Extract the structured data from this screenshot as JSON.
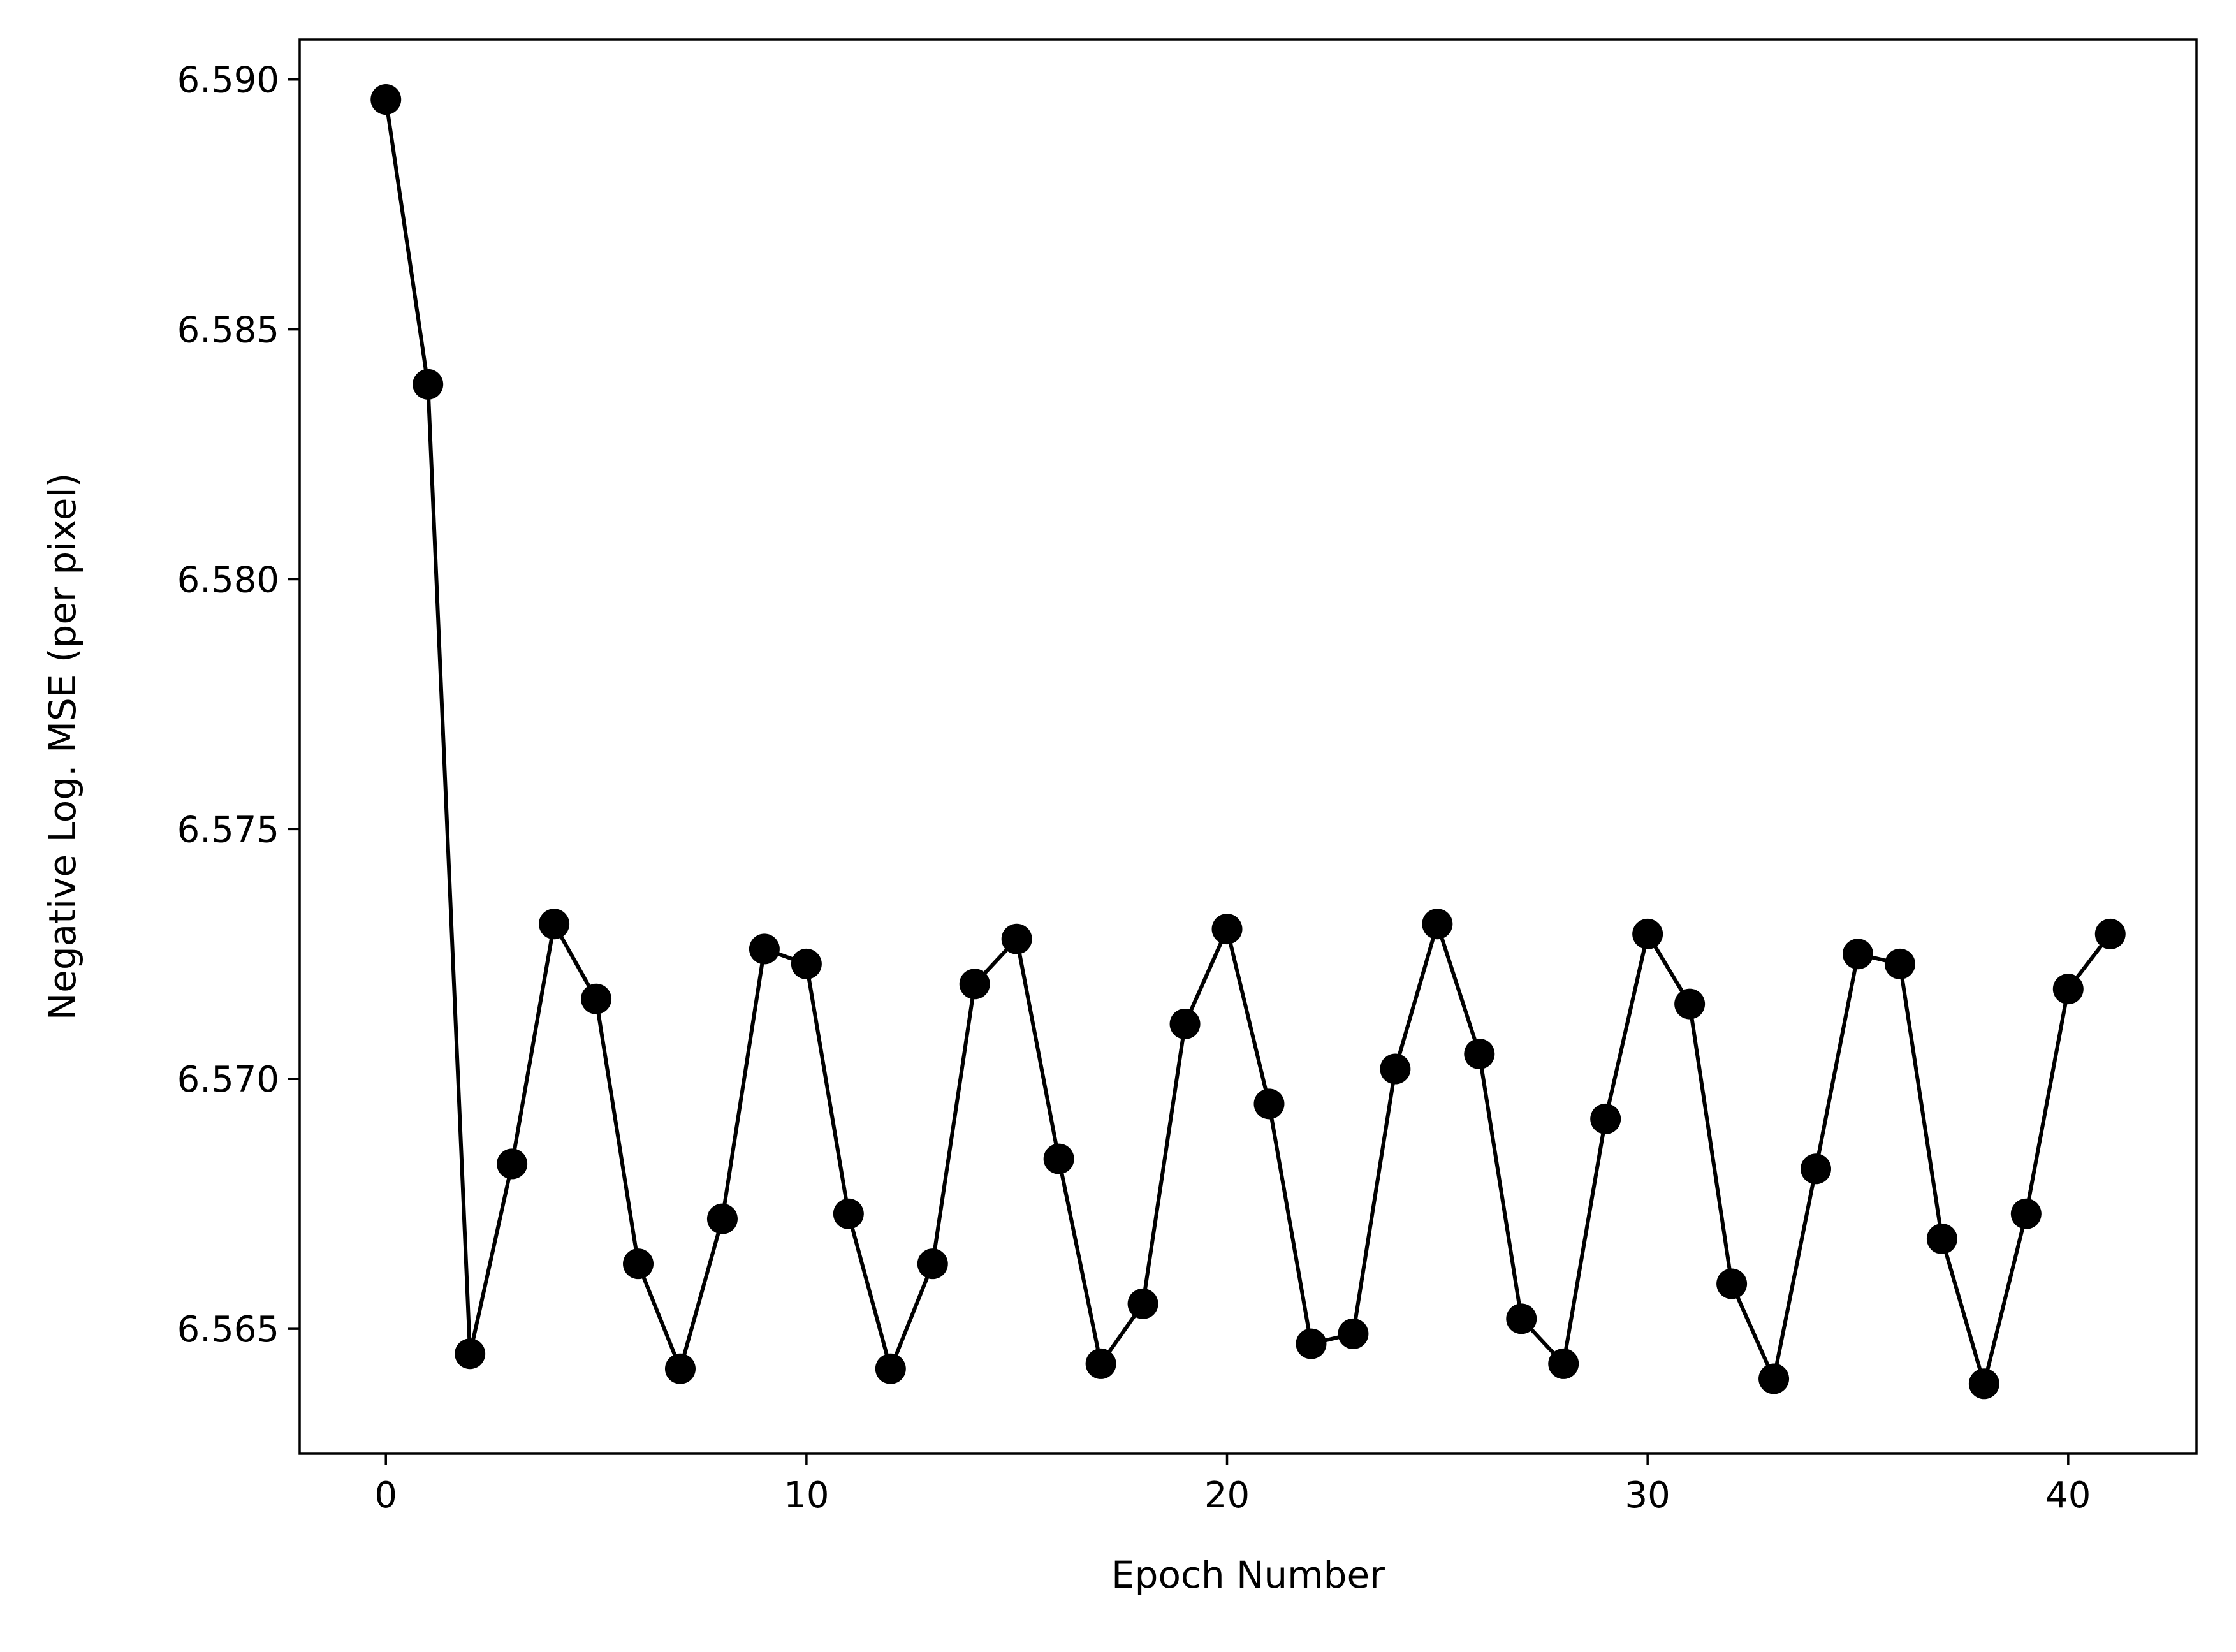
{
  "chart_data": {
    "type": "line",
    "xlabel": "Epoch Number",
    "ylabel": "Negative Log. MSE (per pixel)",
    "xlim": [
      -2.05,
      43.05
    ],
    "ylim": [
      6.5625,
      6.5908
    ],
    "xticks": [
      0,
      10,
      20,
      30,
      40
    ],
    "yticks": [
      6.565,
      6.57,
      6.575,
      6.58,
      6.585,
      6.59
    ],
    "ytick_labels": [
      "6.565",
      "6.570",
      "6.575",
      "6.580",
      "6.585",
      "6.590"
    ],
    "grid": false,
    "line_color": "#000000",
    "marker": "circle",
    "series": [
      {
        "x": [
          0,
          1,
          2,
          3,
          4,
          5,
          6,
          7,
          8,
          9,
          10,
          11,
          12,
          13,
          14,
          15,
          16,
          17,
          18,
          19,
          20,
          21,
          22,
          23,
          24,
          25,
          26,
          27,
          28,
          29,
          30,
          31,
          32,
          33,
          34,
          35,
          36,
          37,
          38,
          39,
          40,
          41
        ],
        "values": [
          6.5896,
          6.5839,
          6.5645,
          6.5683,
          6.5731,
          6.5716,
          6.5663,
          6.5642,
          6.5672,
          6.5726,
          6.5723,
          6.5673,
          6.5642,
          6.5663,
          6.5719,
          6.5728,
          6.5684,
          6.5643,
          6.5655,
          6.5711,
          6.573,
          6.5695,
          6.5647,
          6.5649,
          6.5702,
          6.5731,
          6.5705,
          6.5652,
          6.5643,
          6.5692,
          6.5729,
          6.5715,
          6.5659,
          6.564,
          6.5682,
          6.5725,
          6.5723,
          6.5668,
          6.5639,
          6.5673,
          6.5718,
          6.5729
        ]
      }
    ]
  }
}
